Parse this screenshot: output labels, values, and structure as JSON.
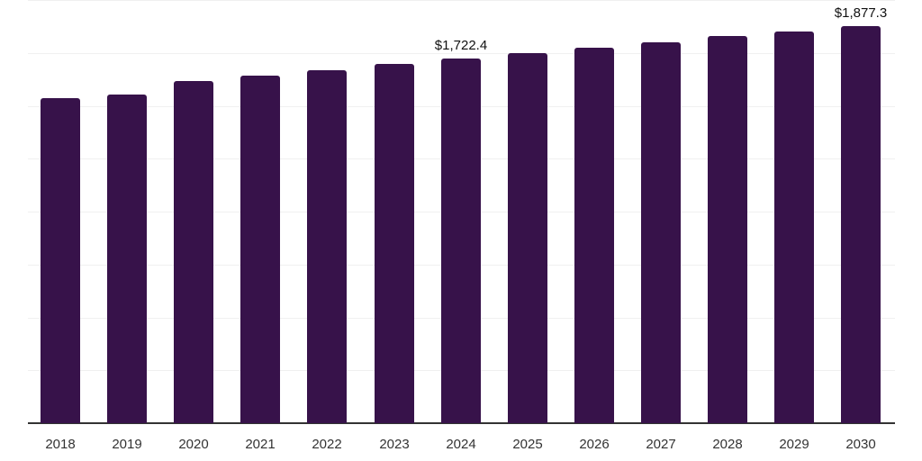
{
  "chart_data": {
    "type": "bar",
    "title": "",
    "xlabel": "",
    "ylabel": "",
    "categories": [
      "2018",
      "2019",
      "2020",
      "2021",
      "2022",
      "2023",
      "2024",
      "2025",
      "2026",
      "2027",
      "2028",
      "2029",
      "2030"
    ],
    "values": [
      1538,
      1555,
      1619,
      1644,
      1670,
      1700,
      1722.4,
      1747,
      1776,
      1802,
      1828,
      1853,
      1877.3
    ],
    "ylim": [
      0,
      2000
    ],
    "y_gridlines": [
      0,
      250,
      500,
      750,
      1000,
      1250,
      1500,
      1750,
      2000
    ],
    "grid": true,
    "y_tick_labels_visible": false,
    "legend": null,
    "annotations": [
      {
        "category": "2024",
        "text": "$1,722.4"
      },
      {
        "category": "2030",
        "text": "$1,877.3"
      }
    ],
    "bar_color": "#37124a"
  }
}
